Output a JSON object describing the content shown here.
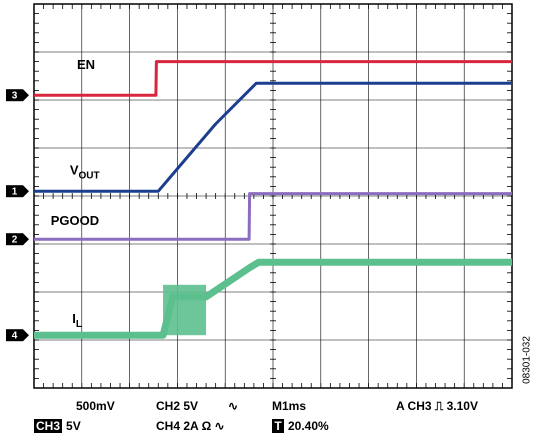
{
  "chart_data": {
    "type": "line",
    "title": "",
    "xlabel": "",
    "ylabel": "",
    "grid": true,
    "x_divisions": 10,
    "y_divisions": 8,
    "xlim": [
      0,
      10
    ],
    "ylim": [
      0,
      8
    ],
    "series": [
      {
        "name": "EN",
        "channel": "3",
        "color": "#d9263f",
        "marker_level": 6.1,
        "label_pos": [
          0.9,
          6.65
        ],
        "points": [
          [
            0,
            6.1
          ],
          [
            2.55,
            6.1
          ],
          [
            2.56,
            6.8
          ],
          [
            10,
            6.8
          ]
        ]
      },
      {
        "name": "V",
        "name_sub": "OUT",
        "channel": "1",
        "color": "#1b3f8e",
        "marker_level": 4.1,
        "label_pos": [
          0.75,
          4.45
        ],
        "points": [
          [
            0,
            4.1
          ],
          [
            2.6,
            4.1
          ],
          [
            2.9,
            4.45
          ],
          [
            3.8,
            5.5
          ],
          [
            4.65,
            6.35
          ],
          [
            10,
            6.35
          ]
        ]
      },
      {
        "name": "PGOOD",
        "channel": "2",
        "color": "#8b6dbf",
        "marker_level": 3.1,
        "label_pos": [
          0.35,
          3.4
        ],
        "points": [
          [
            0,
            3.1
          ],
          [
            4.5,
            3.1
          ],
          [
            4.51,
            4.05
          ],
          [
            10,
            4.05
          ]
        ]
      },
      {
        "name": "I",
        "name_sub": "L",
        "channel": "4",
        "color": "#5cc08e",
        "marker_level": 1.1,
        "label_pos": [
          0.8,
          1.35
        ],
        "points": [
          [
            0,
            1.1
          ],
          [
            2.7,
            1.1
          ],
          [
            2.9,
            1.9
          ],
          [
            3.6,
            1.9
          ],
          [
            4.2,
            2.3
          ],
          [
            4.5,
            2.5
          ],
          [
            4.7,
            2.62
          ],
          [
            10,
            2.62
          ]
        ]
      }
    ]
  },
  "readout": {
    "ch1_scale": "500mV",
    "ch2_scale": "CH2  5V",
    "coupling_symbol": "∿",
    "ch3_tag": "CH3",
    "ch3_scale": "5V",
    "ch4_scale": "CH4  2A Ω",
    "timebase": "M1ms",
    "trigger": "A  CH3  ⎍  3.10V",
    "trigger_box": "T",
    "trigger_pos": "20.40%"
  },
  "figure_code": "08301-032"
}
